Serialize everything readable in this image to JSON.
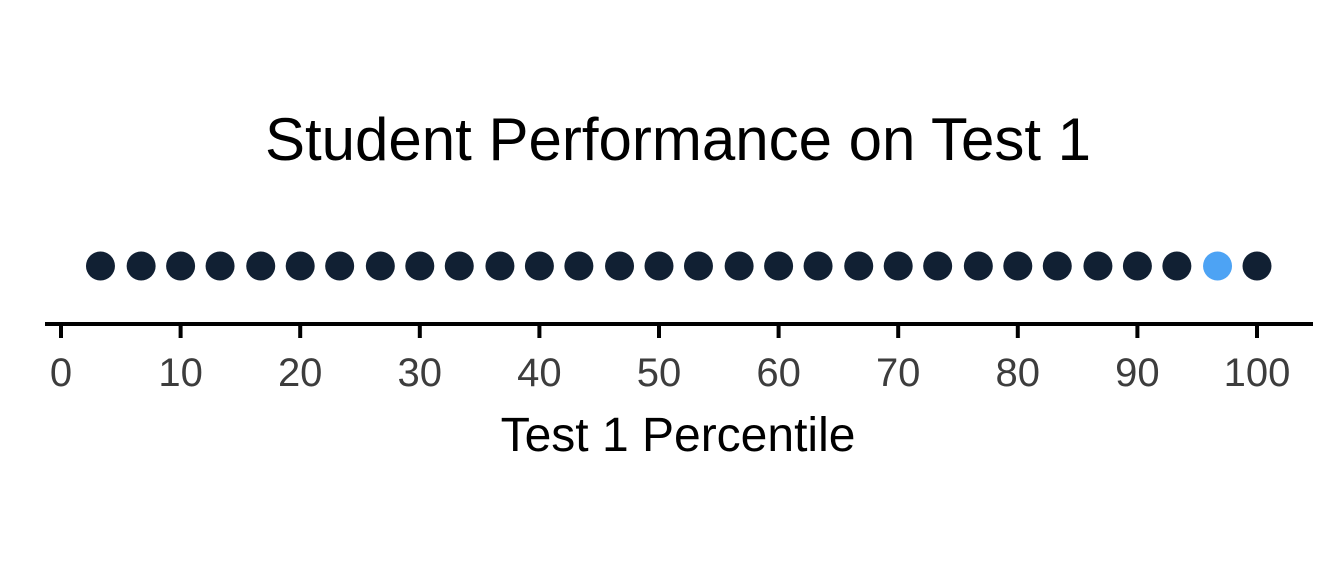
{
  "colors": {
    "default_point": "#112033",
    "highlight_point": "#4da3f4",
    "axis": "#000000",
    "tick_text": "#3d3d3d",
    "background": "#ffffff"
  },
  "chart_data": {
    "type": "scatter",
    "title": "Student Performance on Test 1",
    "xlabel": "Test 1 Percentile",
    "ylabel": "",
    "xlim": [
      0,
      100
    ],
    "xticks": [
      0,
      10,
      20,
      30,
      40,
      50,
      60,
      70,
      80,
      90,
      100
    ],
    "grid": false,
    "legend": "none",
    "points": [
      {
        "x": 3.3,
        "highlight": false
      },
      {
        "x": 6.7,
        "highlight": false
      },
      {
        "x": 10.0,
        "highlight": false
      },
      {
        "x": 13.3,
        "highlight": false
      },
      {
        "x": 16.7,
        "highlight": false
      },
      {
        "x": 20.0,
        "highlight": false
      },
      {
        "x": 23.3,
        "highlight": false
      },
      {
        "x": 26.7,
        "highlight": false
      },
      {
        "x": 30.0,
        "highlight": false
      },
      {
        "x": 33.3,
        "highlight": false
      },
      {
        "x": 36.7,
        "highlight": false
      },
      {
        "x": 40.0,
        "highlight": false
      },
      {
        "x": 43.3,
        "highlight": false
      },
      {
        "x": 46.7,
        "highlight": false
      },
      {
        "x": 50.0,
        "highlight": false
      },
      {
        "x": 53.3,
        "highlight": false
      },
      {
        "x": 56.7,
        "highlight": false
      },
      {
        "x": 60.0,
        "highlight": false
      },
      {
        "x": 63.3,
        "highlight": false
      },
      {
        "x": 66.7,
        "highlight": false
      },
      {
        "x": 70.0,
        "highlight": false
      },
      {
        "x": 73.3,
        "highlight": false
      },
      {
        "x": 76.7,
        "highlight": false
      },
      {
        "x": 80.0,
        "highlight": false
      },
      {
        "x": 83.3,
        "highlight": false
      },
      {
        "x": 86.7,
        "highlight": false
      },
      {
        "x": 90.0,
        "highlight": false
      },
      {
        "x": 93.3,
        "highlight": false
      },
      {
        "x": 96.7,
        "highlight": true
      },
      {
        "x": 100.0,
        "highlight": false
      }
    ]
  }
}
